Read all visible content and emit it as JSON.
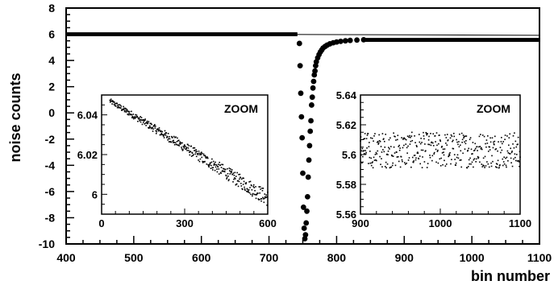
{
  "chart_data": {
    "type": "scatter",
    "xlabel": "bin number",
    "ylabel": "noise counts",
    "xlim": [
      400,
      1100
    ],
    "ylim": [
      -10,
      8
    ],
    "xticks": [
      400,
      500,
      600,
      700,
      800,
      900,
      1000,
      1100
    ],
    "yticks": [
      -10,
      -8,
      -6,
      -4,
      -2,
      0,
      2,
      4,
      6,
      8
    ],
    "reference_line": {
      "x": [
        400,
        1100
      ],
      "y": [
        6.05,
        5.92
      ]
    },
    "series": [
      {
        "marker": "large-dot",
        "points": [
          [
            745,
            5.3
          ],
          [
            746,
            3.6
          ],
          [
            747,
            1.5
          ],
          [
            748,
            -0.3
          ],
          [
            749,
            -1.9
          ],
          [
            750,
            -4.6
          ],
          [
            751,
            -7.2
          ],
          [
            752,
            -8.8
          ],
          [
            753,
            -9.6
          ],
          [
            754,
            -9.3
          ],
          [
            755,
            -8.4
          ],
          [
            756,
            -7.5
          ],
          [
            757,
            -6.4
          ],
          [
            758,
            -4.9
          ],
          [
            759,
            -3.6
          ],
          [
            760,
            -2.5
          ],
          [
            761,
            -1.4
          ],
          [
            762,
            -0.6
          ],
          [
            763,
            0.6
          ],
          [
            764,
            1.2
          ],
          [
            765,
            1.9
          ],
          [
            766,
            2.4
          ],
          [
            767,
            2.9
          ],
          [
            768,
            3.2
          ],
          [
            769,
            3.6
          ],
          [
            770,
            3.9
          ],
          [
            772,
            4.2
          ],
          [
            774,
            4.45
          ],
          [
            776,
            4.65
          ],
          [
            778,
            4.8
          ],
          [
            780,
            4.95
          ],
          [
            783,
            5.07
          ],
          [
            786,
            5.17
          ],
          [
            790,
            5.27
          ],
          [
            795,
            5.35
          ],
          [
            800,
            5.41
          ],
          [
            806,
            5.46
          ],
          [
            813,
            5.5
          ],
          [
            820,
            5.53
          ],
          [
            830,
            5.56
          ],
          [
            840,
            5.58
          ]
        ]
      }
    ],
    "insets": [
      {
        "label": "ZOOM",
        "xlim": [
          0,
          600
        ],
        "ylim": [
          5.99,
          6.05
        ],
        "xticks": [
          0,
          300,
          600
        ],
        "yticks": [
          6,
          6.02,
          6.04
        ],
        "ytick_labels": [
          "6",
          "6.02",
          "6.04"
        ],
        "trend": {
          "x": [
            30,
            600
          ],
          "y": [
            6.047,
            5.998
          ],
          "spread": 0.004
        }
      },
      {
        "label": "ZOOM",
        "xlim": [
          900,
          1100
        ],
        "ylim": [
          5.56,
          5.64
        ],
        "xticks": [
          900,
          1000,
          1100
        ],
        "yticks": [
          5.56,
          5.58,
          5.6,
          5.62,
          5.64
        ],
        "ytick_labels": [
          "5.56",
          "5.58",
          "5.6",
          "5.62",
          "5.64"
        ],
        "trend": {
          "x": [
            900,
            1100
          ],
          "y": [
            5.603,
            5.603
          ],
          "spread": 0.012
        }
      }
    ]
  }
}
